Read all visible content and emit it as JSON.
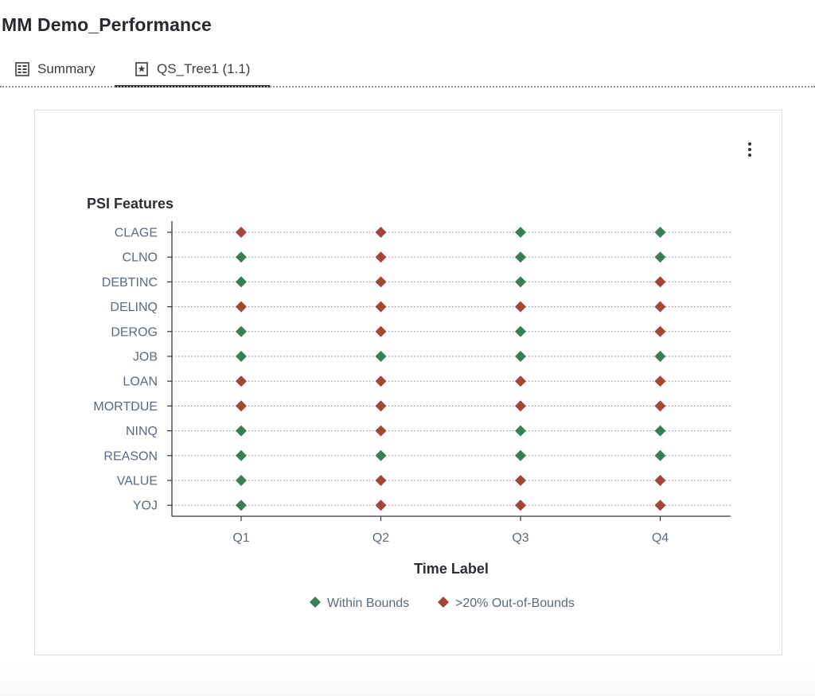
{
  "page": {
    "title": "MM Demo_Performance"
  },
  "tabs": [
    {
      "label": "Summary",
      "icon": "report-icon",
      "active": false
    },
    {
      "label": "QS_Tree1 (1.1)",
      "icon": "starred-document-icon",
      "active": true
    }
  ],
  "card": {
    "menu_icon": "more-vertical-icon"
  },
  "colors": {
    "within": "#3b7d56",
    "out": "#a3443d",
    "grid": "#8e939a",
    "axis": "#333840",
    "label": "#5b6a7c"
  },
  "chart_data": {
    "type": "scatter",
    "title": "PSI Features",
    "xlabel": "Time Label",
    "ylabel": "",
    "categories_x": [
      "Q1",
      "Q2",
      "Q3",
      "Q4"
    ],
    "categories_y": [
      "CLAGE",
      "CLNO",
      "DEBTINC",
      "DELINQ",
      "DEROG",
      "JOB",
      "LOAN",
      "MORTDUE",
      "NINQ",
      "REASON",
      "VALUE",
      "YOJ"
    ],
    "grid": true,
    "legend_position": "bottom-center",
    "series": [
      {
        "name": "Within Bounds",
        "color": "#3b7d56",
        "marker": "diamond"
      },
      {
        "name": ">20% Out-of-Bounds",
        "color": "#a3443d",
        "marker": "diamond"
      }
    ],
    "status_matrix": {
      "CLAGE": [
        "Out",
        "Out",
        "In",
        "In"
      ],
      "CLNO": [
        "In",
        "Out",
        "In",
        "In"
      ],
      "DEBTINC": [
        "In",
        "Out",
        "In",
        "Out"
      ],
      "DELINQ": [
        "Out",
        "Out",
        "Out",
        "Out"
      ],
      "DEROG": [
        "In",
        "Out",
        "In",
        "Out"
      ],
      "JOB": [
        "In",
        "In",
        "In",
        "In"
      ],
      "LOAN": [
        "Out",
        "Out",
        "Out",
        "Out"
      ],
      "MORTDUE": [
        "Out",
        "Out",
        "Out",
        "Out"
      ],
      "NINQ": [
        "In",
        "Out",
        "In",
        "In"
      ],
      "REASON": [
        "In",
        "In",
        "In",
        "In"
      ],
      "VALUE": [
        "In",
        "Out",
        "Out",
        "Out"
      ],
      "YOJ": [
        "In",
        "Out",
        "Out",
        "Out"
      ]
    }
  }
}
